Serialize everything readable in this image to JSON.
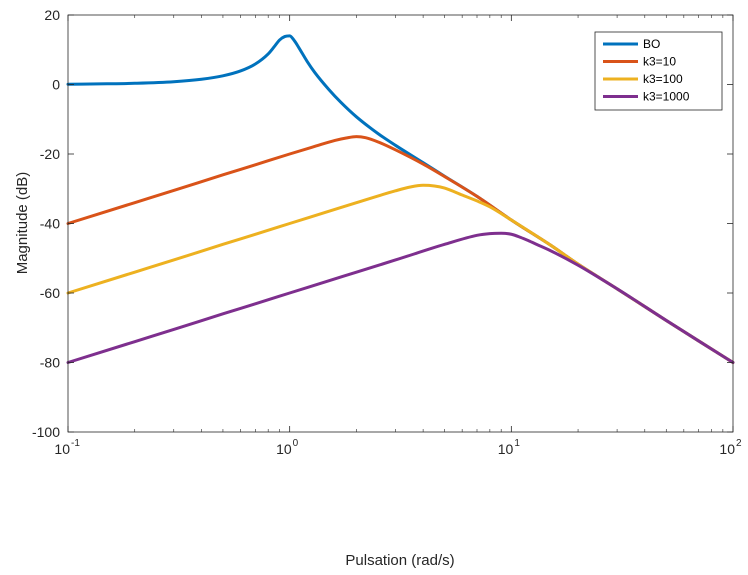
{
  "chart_data": {
    "type": "line",
    "xlabel": "Pulsation (rad/s)",
    "ylabel": "Magnitude (dB)",
    "x_scale": "log",
    "xlim": [
      0.1,
      100
    ],
    "ylim": [
      -100,
      20
    ],
    "x_ticks": [
      {
        "value": 0.1,
        "base": "10",
        "exp": "-1"
      },
      {
        "value": 1,
        "base": "10",
        "exp": "0"
      },
      {
        "value": 10,
        "base": "10",
        "exp": "1"
      },
      {
        "value": 100,
        "base": "10",
        "exp": "2"
      }
    ],
    "y_ticks": [
      {
        "value": 20,
        "label": "20"
      },
      {
        "value": 0,
        "label": "0"
      },
      {
        "value": -20,
        "label": "-20"
      },
      {
        "value": -40,
        "label": "-40"
      },
      {
        "value": -60,
        "label": "-60"
      },
      {
        "value": -80,
        "label": "-80"
      },
      {
        "value": -100,
        "label": "-100"
      }
    ],
    "grid": false,
    "legend_position": "top-right",
    "series": [
      {
        "name": "BO",
        "color": "#0072BD",
        "x": [
          0.1,
          0.15,
          0.2,
          0.3,
          0.4,
          0.5,
          0.6,
          0.7,
          0.8,
          0.85,
          0.9,
          0.95,
          1.0,
          1.05,
          1.1,
          1.2,
          1.3,
          1.5,
          1.7,
          2.0,
          2.5,
          3,
          4,
          5,
          7,
          10,
          15,
          20,
          30,
          50,
          70,
          100
        ],
        "y": [
          0.09,
          0.2,
          0.35,
          0.8,
          1.5,
          2.5,
          3.9,
          5.9,
          8.8,
          10.8,
          12.8,
          13.8,
          14.0,
          12.6,
          10.6,
          6.6,
          3.4,
          -1.4,
          -5.1,
          -9.3,
          -14.1,
          -17.5,
          -22.5,
          -26.4,
          -32.2,
          -39.0,
          -46.2,
          -51.7,
          -58.8,
          -67.9,
          -73.8,
          -80.0
        ]
      },
      {
        "name": "k3=10",
        "color": "#D95319",
        "x": [
          0.1,
          0.2,
          0.3,
          0.5,
          0.7,
          1.0,
          1.3,
          1.6,
          1.8,
          2.0,
          2.2,
          2.5,
          3.0,
          4.0,
          5.0,
          7.0,
          10,
          15,
          20,
          30,
          50,
          70,
          100
        ],
        "y": [
          -40.0,
          -34.0,
          -30.5,
          -26.0,
          -23.1,
          -20.0,
          -17.8,
          -16.1,
          -15.4,
          -15.0,
          -15.3,
          -16.5,
          -18.8,
          -22.9,
          -26.5,
          -32.2,
          -39.0,
          -46.2,
          -51.7,
          -58.8,
          -67.9,
          -73.8,
          -80.0
        ]
      },
      {
        "name": "k3=100",
        "color": "#EDB120",
        "x": [
          0.1,
          0.2,
          0.3,
          0.5,
          0.7,
          1.0,
          1.5,
          2.0,
          3.0,
          3.5,
          4.0,
          4.5,
          5.0,
          6.0,
          7.0,
          8.0,
          10,
          15,
          20,
          30,
          50,
          70,
          100
        ],
        "y": [
          -60.0,
          -54.0,
          -50.5,
          -46.0,
          -43.1,
          -40.0,
          -36.5,
          -34.0,
          -30.6,
          -29.5,
          -29.0,
          -29.2,
          -29.8,
          -31.8,
          -33.5,
          -35.2,
          -39.0,
          -46.2,
          -51.7,
          -58.8,
          -67.9,
          -73.8,
          -80.0
        ]
      },
      {
        "name": "k3=1000",
        "color": "#7E2F8E",
        "x": [
          0.1,
          0.2,
          0.3,
          0.5,
          0.7,
          1.0,
          1.5,
          2.0,
          3.0,
          5.0,
          7.0,
          8.0,
          9.0,
          10,
          11,
          12,
          13,
          15,
          20,
          30,
          50,
          70,
          100
        ],
        "y": [
          -80.0,
          -74.0,
          -70.5,
          -66.0,
          -63.1,
          -60.0,
          -56.5,
          -54.0,
          -50.5,
          -46.0,
          -43.4,
          -42.9,
          -42.8,
          -43.1,
          -44.0,
          -45.0,
          -46.0,
          -47.8,
          -52.0,
          -58.8,
          -67.9,
          -73.8,
          -80.0
        ]
      }
    ]
  }
}
